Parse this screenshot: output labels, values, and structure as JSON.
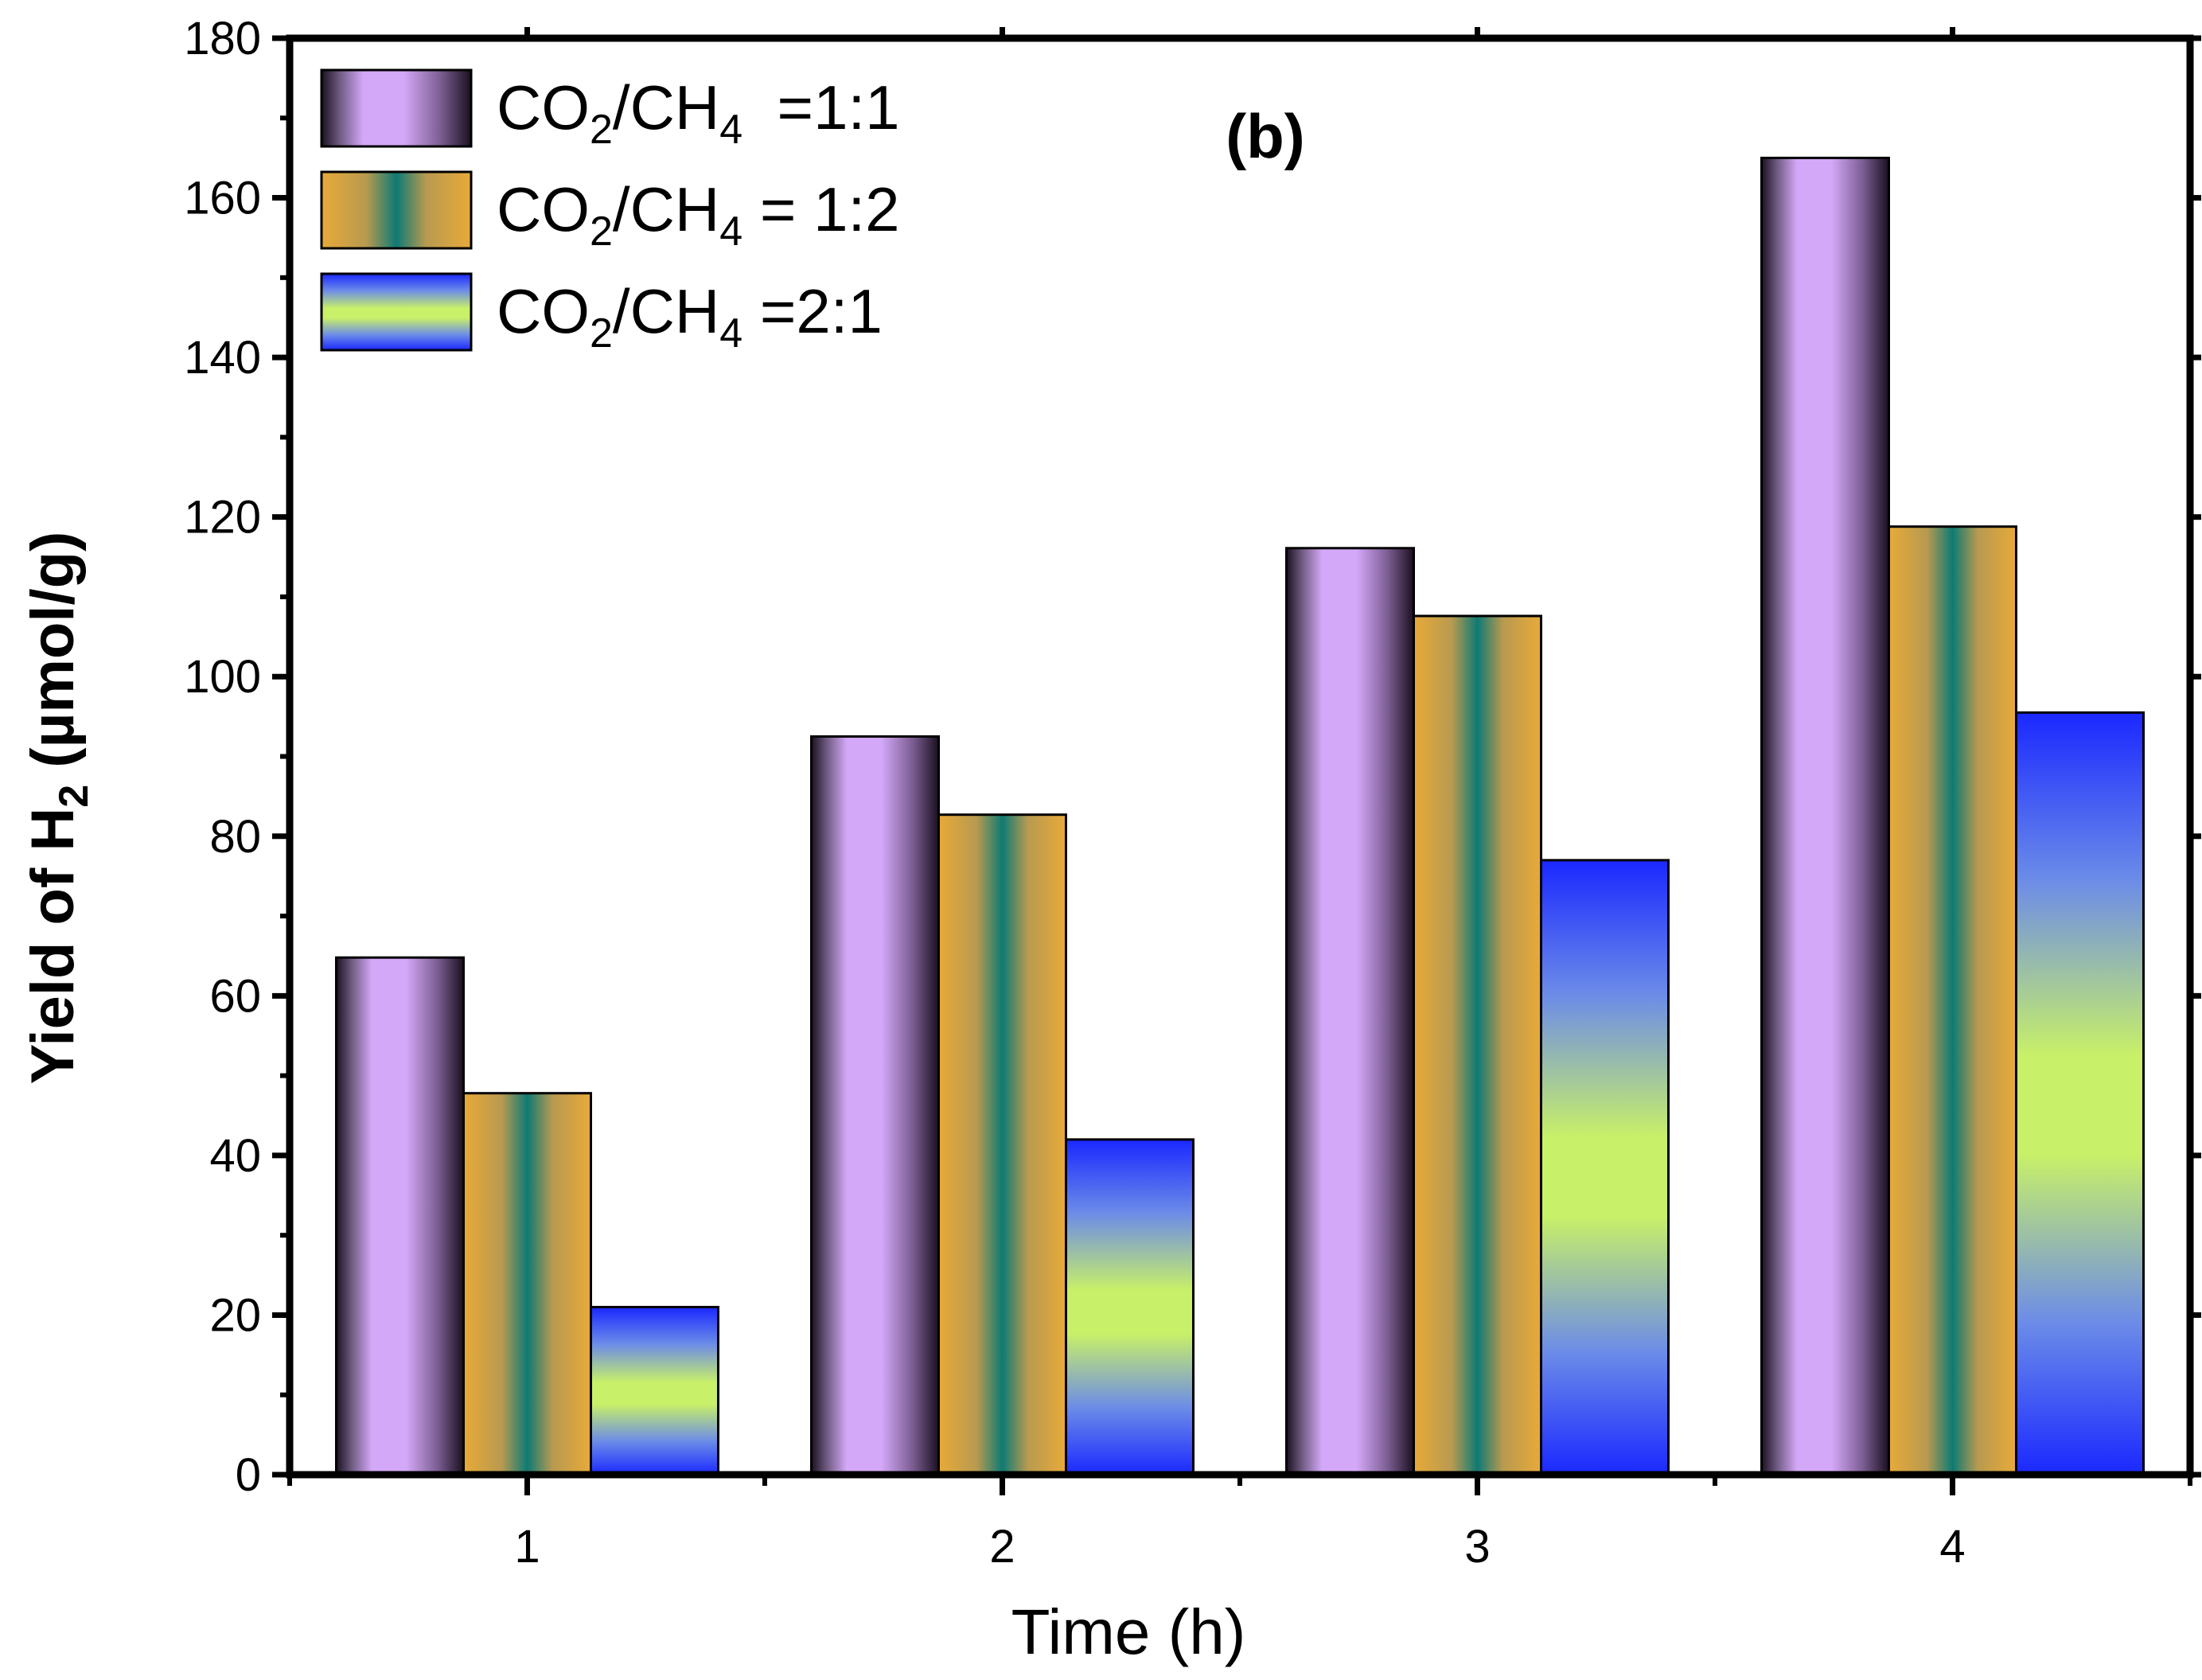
{
  "chart_data": {
    "type": "bar",
    "annotation": "(b)",
    "xlabel": "Time (h)",
    "ylabel_parts": {
      "pre": "Yield of H",
      "sub": "2",
      "post": " (µmol/g)"
    },
    "categories": [
      "1",
      "2",
      "3",
      "4"
    ],
    "ylim": [
      0,
      180
    ],
    "yticks": [
      0,
      20,
      40,
      60,
      80,
      100,
      120,
      140,
      160,
      180
    ],
    "yticklabels": [
      "0",
      "20",
      "40",
      "60",
      "80",
      "100",
      "120",
      "140",
      "160",
      "180"
    ],
    "legend_position": "top-left",
    "series": [
      {
        "name": "CO2/CH4 =1:1",
        "name_parts": [
          "CO",
          "2",
          "/CH",
          "4",
          "  =1:1"
        ],
        "values": [
          64.8,
          92.5,
          116.1,
          165.0
        ],
        "gradient": "purple"
      },
      {
        "name": "CO2/CH4 = 1:2",
        "name_parts": [
          "CO",
          "2",
          "/CH",
          "4",
          " = 1:2"
        ],
        "values": [
          47.8,
          82.7,
          107.6,
          118.8
        ],
        "gradient": "orange-teal"
      },
      {
        "name": "CO2/CH4 =2:1",
        "name_parts": [
          "CO",
          "2",
          "/CH",
          "4",
          " =2:1"
        ],
        "values": [
          21.0,
          42.0,
          77.0,
          95.5
        ],
        "gradient": "blue-green"
      }
    ]
  },
  "colors": {
    "purple_edge": "#1a1020",
    "purple_mid": "#d4a8f8",
    "orange": "#e8aa38",
    "teal": "#0e7a74",
    "blue": "#1a28ff",
    "lime": "#c8f068"
  }
}
